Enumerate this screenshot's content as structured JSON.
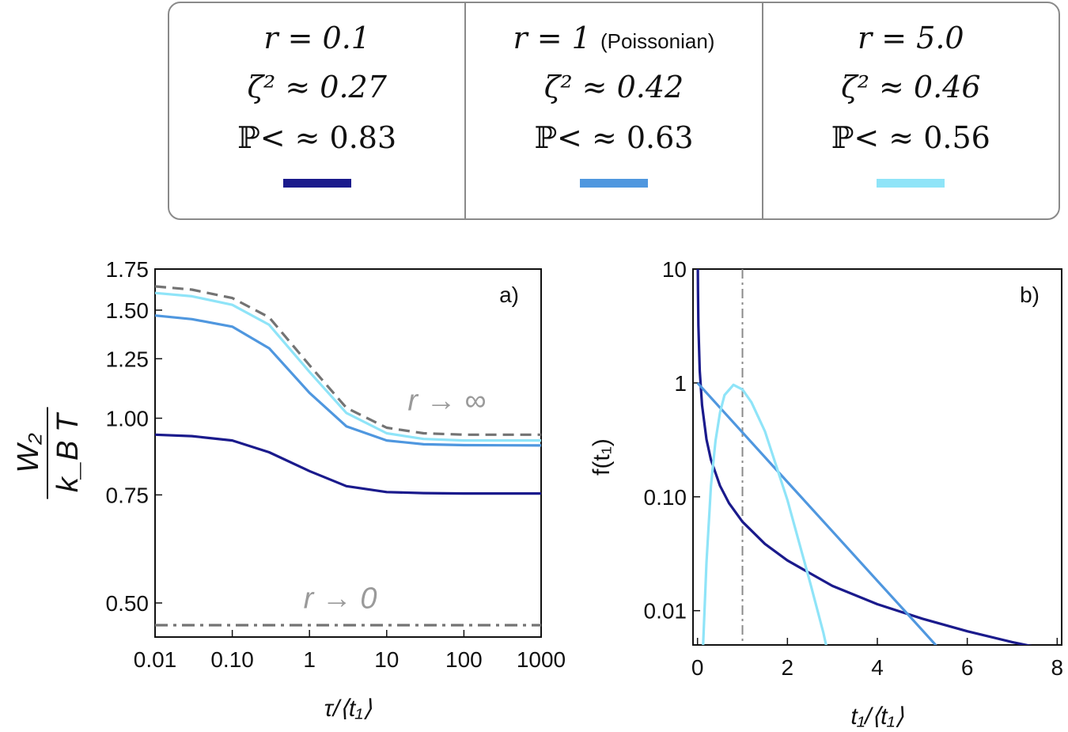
{
  "legend": {
    "entries": [
      {
        "r_label": "r = 0.1",
        "r_note": "",
        "zeta": "ζ² ≈ 0.27",
        "prob": "ℙ< ≈ 0.83",
        "color": "#1a1a8c"
      },
      {
        "r_label": "r = 1",
        "r_note": "(Poissonian)",
        "zeta": "ζ² ≈ 0.42",
        "prob": "ℙ< ≈ 0.63",
        "color": "#4f97df"
      },
      {
        "r_label": "r = 5.0",
        "r_note": "",
        "zeta": "ζ² ≈ 0.46",
        "prob": "ℙ< ≈ 0.56",
        "color": "#8fe4f8"
      }
    ]
  },
  "chart_data": [
    {
      "type": "line",
      "panel_label": "a)",
      "xlabel": "τ/⟨t₁⟩",
      "ylabel_num": "W₂",
      "ylabel_den": "k_B T",
      "x_scale": "log",
      "y_scale": "log",
      "xlim": [
        0.01,
        1000
      ],
      "ylim": [
        0.44,
        1.75
      ],
      "x_ticks": [
        0.01,
        0.1,
        1,
        10,
        100,
        1000
      ],
      "x_tick_labels": [
        "0.01",
        "0.10",
        "1",
        "10",
        "100",
        "1000"
      ],
      "y_ticks": [
        0.5,
        0.75,
        1.0,
        1.25,
        1.5,
        1.75
      ],
      "y_tick_labels": [
        "0.50",
        "0.75",
        "1.00",
        "1.25",
        "1.50",
        "1.75"
      ],
      "series": [
        {
          "name": "r = 0.1",
          "color": "#1a1a8c",
          "style": "solid",
          "x": [
            0.01,
            0.03,
            0.1,
            0.3,
            1,
            3,
            10,
            30,
            100,
            1000
          ],
          "y": [
            0.94,
            0.935,
            0.92,
            0.88,
            0.82,
            0.775,
            0.758,
            0.755,
            0.754,
            0.754
          ]
        },
        {
          "name": "r = 1",
          "color": "#4f97df",
          "style": "solid",
          "x": [
            0.01,
            0.03,
            0.1,
            0.3,
            1,
            3,
            10,
            30,
            100,
            1000
          ],
          "y": [
            1.47,
            1.45,
            1.41,
            1.3,
            1.1,
            0.97,
            0.92,
            0.907,
            0.904,
            0.903
          ]
        },
        {
          "name": "r = 5.0",
          "color": "#8fe4f8",
          "style": "solid",
          "x": [
            0.01,
            0.03,
            0.1,
            0.3,
            1,
            3,
            10,
            30,
            100,
            1000
          ],
          "y": [
            1.6,
            1.58,
            1.53,
            1.42,
            1.19,
            1.02,
            0.945,
            0.925,
            0.92,
            0.92
          ]
        },
        {
          "name": "r → ∞",
          "color": "#737373",
          "style": "dashed",
          "x": [
            0.01,
            0.03,
            0.1,
            0.3,
            1,
            3,
            10,
            30,
            100,
            1000
          ],
          "y": [
            1.64,
            1.62,
            1.57,
            1.46,
            1.22,
            1.04,
            0.965,
            0.945,
            0.94,
            0.94
          ]
        },
        {
          "name": "r → 0",
          "color": "#737373",
          "style": "dashdot",
          "x": [
            0.01,
            1000
          ],
          "y": [
            0.46,
            0.46
          ]
        }
      ],
      "annotations": [
        {
          "text": "r → ∞",
          "x": 60,
          "y": 1.03
        },
        {
          "text": "r → 0",
          "x": 2.5,
          "y": 0.49
        }
      ]
    },
    {
      "type": "line",
      "panel_label": "b)",
      "xlabel": "t₁/⟨t₁⟩",
      "ylabel": "f(t₁)",
      "x_scale": "linear",
      "y_scale": "log",
      "xlim": [
        -0.1,
        8.1
      ],
      "ylim": [
        0.005,
        10
      ],
      "x_ticks": [
        0,
        2,
        4,
        6,
        8
      ],
      "x_tick_labels": [
        "0",
        "2",
        "4",
        "6",
        "8"
      ],
      "y_ticks": [
        0.01,
        0.1,
        1,
        10
      ],
      "y_tick_labels": [
        "0.01",
        "0.10",
        "1",
        "10"
      ],
      "vline": {
        "x": 1,
        "color": "#8a8a8a",
        "style": "dashdot"
      },
      "series": [
        {
          "name": "r = 0.1",
          "color": "#1a1a8c",
          "x": [
            0.005,
            0.01,
            0.02,
            0.05,
            0.1,
            0.2,
            0.3,
            0.5,
            0.7,
            1.0,
            1.5,
            2,
            3,
            4,
            5,
            6,
            7,
            8.1
          ],
          "y": [
            12.6,
            6.4,
            3.2,
            1.28,
            0.64,
            0.32,
            0.211,
            0.125,
            0.088,
            0.0604,
            0.0386,
            0.0276,
            0.0165,
            0.0114,
            0.0085,
            0.0066,
            0.0053,
            0.0043
          ]
        },
        {
          "name": "r = 1",
          "color": "#4f97df",
          "x": [
            0,
            1,
            2,
            3,
            4,
            5,
            5.4
          ],
          "y": [
            1,
            0.368,
            0.135,
            0.0498,
            0.0183,
            0.00674,
            0.0045
          ]
        },
        {
          "name": "r = 5.0",
          "color": "#8fe4f8",
          "x": [
            0.12,
            0.2,
            0.3,
            0.4,
            0.5,
            0.6,
            0.8,
            1.0,
            1.2,
            1.5,
            2.0,
            2.5,
            2.8,
            3.0
          ],
          "y": [
            0.0045,
            0.0263,
            0.125,
            0.309,
            0.548,
            0.781,
            0.962,
            0.876,
            0.676,
            0.376,
            0.094,
            0.0179,
            0.0064,
            0.0028
          ]
        }
      ]
    }
  ]
}
